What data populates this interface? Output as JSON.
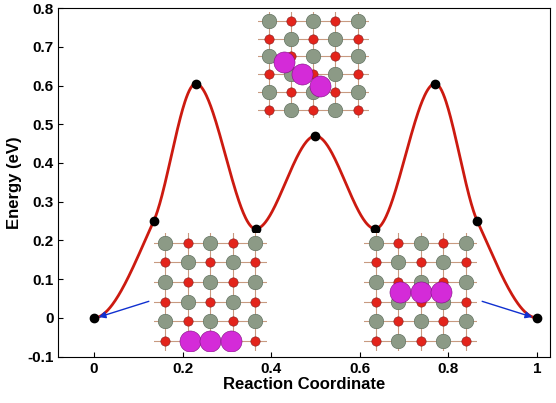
{
  "chart_data": {
    "type": "line",
    "x_label": "Reaction Coordinate",
    "y_label": "Energy (eV)",
    "x": [
      0,
      0.135,
      0.23,
      0.365,
      0.5,
      0.635,
      0.77,
      0.865,
      1
    ],
    "series": [
      {
        "values": [
          0,
          0.25,
          0.605,
          0.23,
          0.47,
          0.23,
          0.605,
          0.25,
          0
        ],
        "color": "#cc1a10",
        "marker": "o",
        "line_style": "smooth"
      }
    ],
    "xlim": [
      -0.08,
      1.03
    ],
    "xticks": [
      0,
      0.2,
      0.4,
      0.6,
      0.8,
      1
    ],
    "ylim": [
      -0.1,
      0.8
    ],
    "yticks": [
      -0.1,
      0,
      0.1,
      0.2,
      0.3,
      0.4,
      0.5,
      0.6,
      0.7,
      0.8
    ],
    "grid": false
  }
}
